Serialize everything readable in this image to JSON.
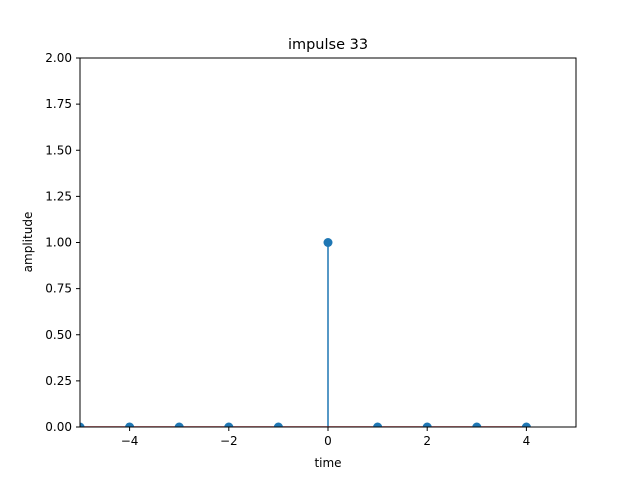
{
  "chart_data": {
    "type": "stem",
    "title": "impulse 33",
    "xlabel": "time",
    "ylabel": "amplitude",
    "xlim": [
      -5,
      5
    ],
    "ylim": [
      0,
      2
    ],
    "x": [
      -5,
      -4,
      -3,
      -2,
      -1,
      0,
      1,
      2,
      3,
      4
    ],
    "y": [
      0,
      0,
      0,
      0,
      0,
      1,
      0,
      0,
      0,
      0
    ],
    "x_ticks": [
      -4,
      -2,
      0,
      2,
      4
    ],
    "x_tick_labels": [
      "−4",
      "−2",
      "0",
      "2",
      "4"
    ],
    "y_ticks": [
      0,
      0.25,
      0.5,
      0.75,
      1,
      1.25,
      1.5,
      1.75,
      2
    ],
    "y_tick_labels": [
      "0.00",
      "0.25",
      "0.50",
      "0.75",
      "1.00",
      "1.25",
      "1.50",
      "1.75",
      "2.00"
    ],
    "grid": false,
    "colors": {
      "stem": "#1f77b4",
      "baseline": "#d62728"
    }
  }
}
